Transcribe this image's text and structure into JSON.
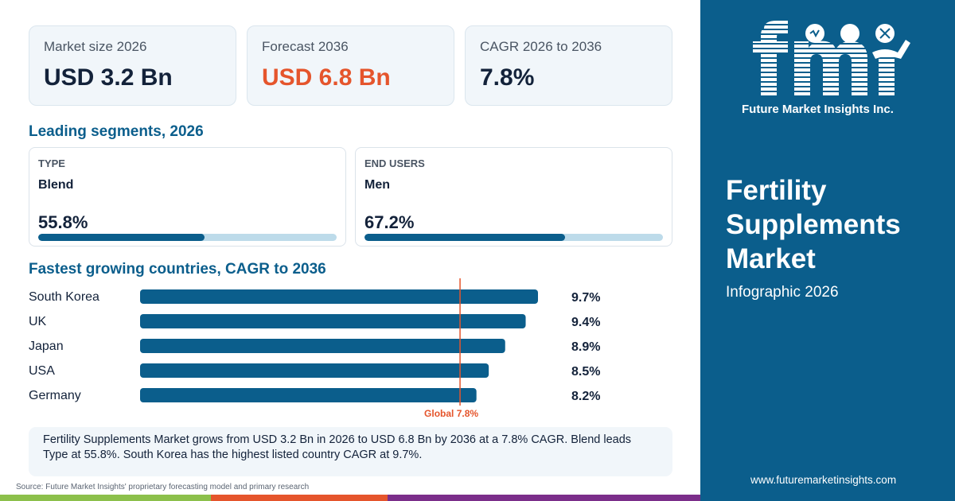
{
  "kpis": [
    {
      "label": "Market size 2026",
      "value": "USD 3.2 Bn",
      "color": "#13223a"
    },
    {
      "label": "Forecast 2036",
      "value": "USD 6.8 Bn",
      "color": "#e5552c"
    },
    {
      "label": "CAGR 2026 to 2036",
      "value": "7.8%",
      "color": "#13223a"
    }
  ],
  "segments": {
    "title": "Leading segments, 2026",
    "items": [
      {
        "category": "TYPE",
        "name": "Blend",
        "share_label": "55.8%",
        "share": 55.8
      },
      {
        "category": "END USERS",
        "name": "Men",
        "share_label": "67.2%",
        "share": 67.2
      }
    ]
  },
  "countries_title": "Fastest growing countries, CAGR to 2036",
  "chart_data": {
    "type": "bar",
    "orientation": "horizontal",
    "categories": [
      "South Korea",
      "UK",
      "Japan",
      "USA",
      "Germany"
    ],
    "values": [
      9.7,
      9.4,
      8.9,
      8.5,
      8.2
    ],
    "value_labels": [
      "9.7%",
      "9.4%",
      "8.9%",
      "8.5%",
      "8.2%"
    ],
    "reference_line": {
      "value": 7.8,
      "label": "Global 7.8%"
    },
    "title": "Fastest growing countries, CAGR to 2036",
    "xlabel": "",
    "ylabel": "",
    "bar_color": "#0b5e8c",
    "reference_color": "#e5552c"
  },
  "summary": "Fertility Supplements Market grows from USD 3.2 Bn in 2026 to USD 6.8 Bn by 2036 at a 7.8% CAGR. Blend leads Type at 55.8%. South Korea has the highest listed country CAGR at 9.7%.",
  "source": "Source: Future Market Insights' proprietary forecasting model and primary research",
  "brand": {
    "logo_text": "fmi",
    "logo_tagline": "Future Market Insights Inc.",
    "title": "Fertility Supplements Market",
    "subtitle": "Infographic 2026",
    "url": "www.futuremarketinsights.com"
  },
  "colors": {
    "primary": "#0b5e8c",
    "accent": "#e5552c",
    "strip": [
      "#8cc04b",
      "#e5552c",
      "#7b2e8a"
    ]
  }
}
